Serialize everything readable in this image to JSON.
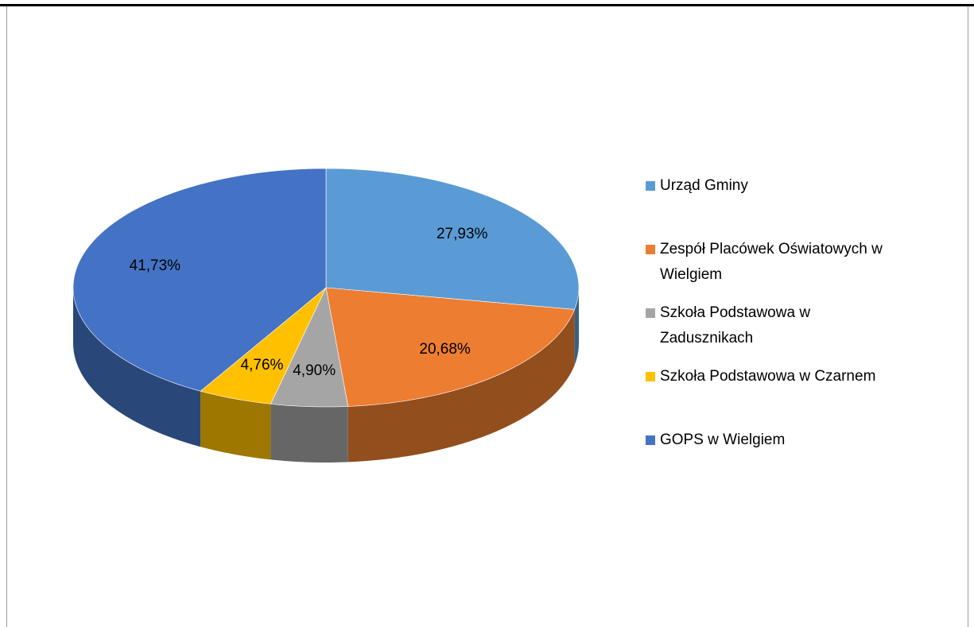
{
  "chart_data": {
    "type": "pie",
    "categories": [
      "Urząd Gminy",
      "Zespół Placówek Oświatowych w Wielgiem",
      "Szkoła Podstawowa w Zadusznikach",
      "Szkoła Podstawowa w Czarnem",
      "GOPS w Wielgiem"
    ],
    "values": [
      27.93,
      20.68,
      4.9,
      4.76,
      41.73
    ],
    "value_labels": [
      "27,93%",
      "20,68%",
      "4,90%",
      "4,76%",
      "41,73%"
    ],
    "colors": [
      "#5b9bd5",
      "#ed7d31",
      "#a5a5a5",
      "#ffc000",
      "#4472c4"
    ],
    "legend": "right"
  }
}
